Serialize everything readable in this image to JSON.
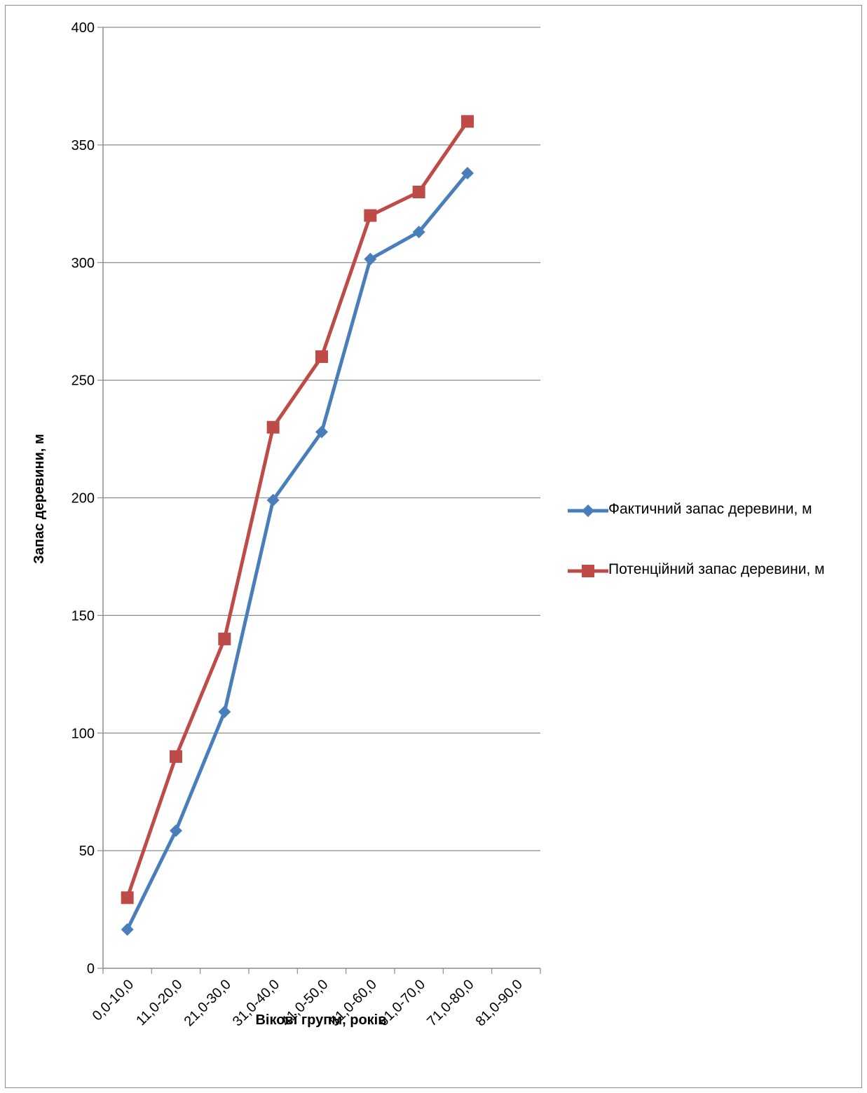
{
  "chart_data": {
    "type": "line",
    "categories": [
      "0,0-10,0",
      "11,0-20,0",
      "21,0-30,0",
      "31,0-40,0",
      "41,0-50,0",
      "51,0-60,0",
      "61,0-70,0",
      "71,0-80,0",
      "81,0-90,0"
    ],
    "series": [
      {
        "name": "Фактичний запас деревини, м",
        "values": [
          16.5,
          58.5,
          109,
          199,
          228,
          301.5,
          313,
          338,
          null
        ],
        "color": "#4a7ebb",
        "marker": "diamond"
      },
      {
        "name": "Потенційний запас деревини, м",
        "values": [
          30,
          90,
          140,
          230,
          260,
          320,
          330,
          360,
          null
        ],
        "color": "#be4b48",
        "marker": "square"
      }
    ],
    "xlabel": "Вікові групм, років",
    "ylabel": "Запас деревини, м",
    "ylim": [
      0,
      400
    ],
    "yticks": [
      0,
      50,
      100,
      150,
      200,
      250,
      300,
      350,
      400
    ],
    "grid": true,
    "legend_position": "right"
  }
}
